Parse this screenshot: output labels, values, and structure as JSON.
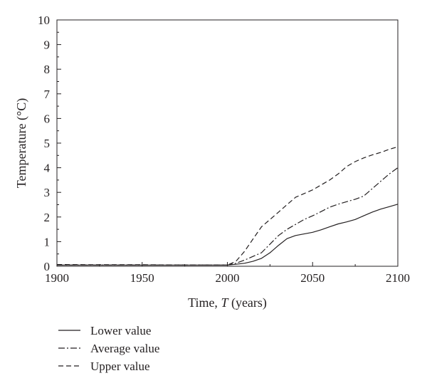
{
  "chart_data": {
    "type": "line",
    "xlabel_prefix": "Time, ",
    "xlabel_var": "T",
    "xlabel_suffix": " (years)",
    "ylabel": "Temperature (°C)",
    "xlim": [
      1900,
      2100
    ],
    "ylim": [
      0,
      10
    ],
    "xticks": [
      1900,
      1950,
      2000,
      2050,
      2100
    ],
    "yticks": [
      0,
      1,
      2,
      3,
      4,
      5,
      6,
      7,
      8,
      9,
      10
    ],
    "grid": false,
    "legend_position": "bottom-left-below-plot",
    "series": [
      {
        "name": "Lower value",
        "dash": "solid",
        "x": [
          1900,
          1925,
          1950,
          1975,
          2000,
          2005,
          2010,
          2015,
          2020,
          2025,
          2030,
          2035,
          2040,
          2050,
          2055,
          2060,
          2065,
          2070,
          2075,
          2080,
          2085,
          2090,
          2095,
          2100
        ],
        "y": [
          0.05,
          0.05,
          0.05,
          0.05,
          0.05,
          0.08,
          0.12,
          0.2,
          0.32,
          0.55,
          0.85,
          1.12,
          1.25,
          1.38,
          1.48,
          1.6,
          1.72,
          1.8,
          1.9,
          2.05,
          2.2,
          2.32,
          2.42,
          2.52
        ]
      },
      {
        "name": "Average value",
        "dash": "dash-dot",
        "x": [
          1900,
          1925,
          1950,
          1975,
          2000,
          2005,
          2010,
          2015,
          2020,
          2025,
          2030,
          2035,
          2040,
          2045,
          2050,
          2055,
          2060,
          2065,
          2070,
          2075,
          2080,
          2085,
          2090,
          2095,
          2100
        ],
        "y": [
          0.05,
          0.05,
          0.05,
          0.05,
          0.05,
          0.12,
          0.25,
          0.4,
          0.55,
          0.9,
          1.25,
          1.5,
          1.7,
          1.9,
          2.05,
          2.22,
          2.4,
          2.52,
          2.62,
          2.72,
          2.85,
          3.15,
          3.45,
          3.75,
          4.0
        ]
      },
      {
        "name": "Upper value",
        "dash": "dashed",
        "x": [
          1900,
          1925,
          1950,
          1975,
          2000,
          2005,
          2010,
          2015,
          2020,
          2025,
          2030,
          2035,
          2040,
          2045,
          2050,
          2055,
          2060,
          2065,
          2070,
          2075,
          2080,
          2085,
          2090,
          2095,
          2100
        ],
        "y": [
          0.07,
          0.06,
          0.06,
          0.05,
          0.05,
          0.2,
          0.6,
          1.1,
          1.6,
          1.9,
          2.2,
          2.5,
          2.8,
          2.95,
          3.1,
          3.3,
          3.5,
          3.75,
          4.05,
          4.25,
          4.4,
          4.52,
          4.62,
          4.75,
          4.85
        ]
      }
    ]
  }
}
